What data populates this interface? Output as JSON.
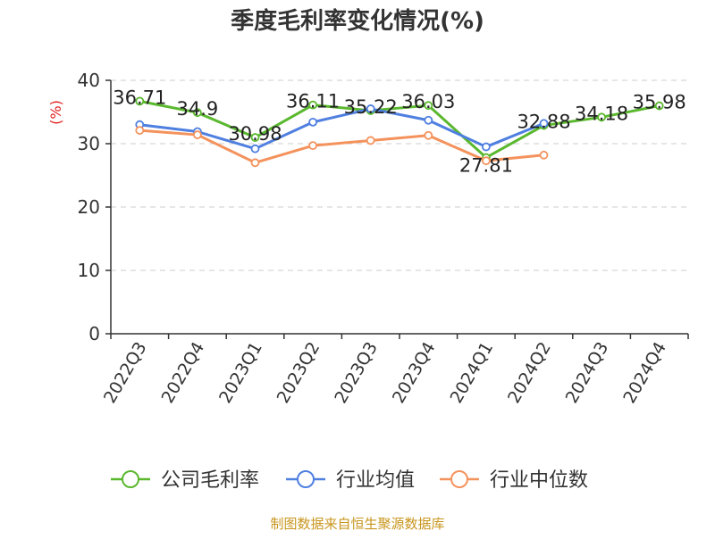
{
  "chart_data": {
    "type": "line",
    "title": "季度毛利率变化情况(%)",
    "ylabel": "(%)",
    "xlabel": "",
    "ylim": [
      0,
      40
    ],
    "yticks": [
      0,
      10,
      20,
      30,
      40
    ],
    "grid": true,
    "legend_position": "bottom",
    "categories": [
      "2022Q3",
      "2022Q4",
      "2023Q1",
      "2023Q2",
      "2023Q3",
      "2023Q4",
      "2024Q1",
      "2024Q2",
      "2024Q3",
      "2024Q4"
    ],
    "series": [
      {
        "name": "公司毛利率",
        "color": "#5ab82e",
        "values": [
          36.71,
          34.9,
          30.98,
          36.11,
          35.22,
          36.03,
          27.81,
          32.88,
          34.18,
          35.98
        ],
        "labels": [
          "36.71",
          "34.9",
          "30.98",
          "36.11",
          "35.22",
          "36.03",
          "27.81",
          "32.88",
          "34.18",
          "35.98"
        ]
      },
      {
        "name": "行业均值",
        "color": "#4f7fe0",
        "values": [
          33.0,
          31.9,
          29.2,
          33.4,
          35.5,
          33.7,
          29.5,
          33.2,
          null,
          null
        ]
      },
      {
        "name": "行业中位数",
        "color": "#f4925c",
        "values": [
          32.1,
          31.4,
          27.0,
          29.7,
          30.5,
          31.3,
          27.3,
          28.2,
          null,
          null
        ]
      }
    ],
    "source": "制图数据来自恒生聚源数据库",
    "colors": {
      "title": "#333333",
      "axis": "#333333",
      "grid": "#cccccc",
      "ylabel": "#e02020",
      "source": "#c8961e"
    }
  }
}
